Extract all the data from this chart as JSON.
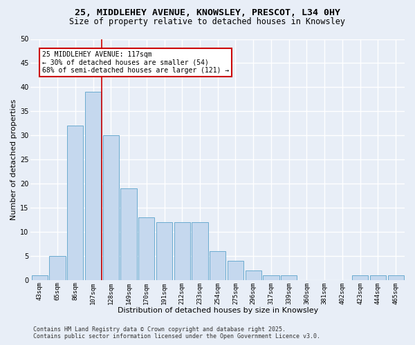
{
  "title": "25, MIDDLEHEY AVENUE, KNOWSLEY, PRESCOT, L34 0HY",
  "subtitle": "Size of property relative to detached houses in Knowsley",
  "xlabel": "Distribution of detached houses by size in Knowsley",
  "ylabel": "Number of detached properties",
  "categories": [
    "43sqm",
    "65sqm",
    "86sqm",
    "107sqm",
    "128sqm",
    "149sqm",
    "170sqm",
    "191sqm",
    "212sqm",
    "233sqm",
    "254sqm",
    "275sqm",
    "296sqm",
    "317sqm",
    "339sqm",
    "360sqm",
    "381sqm",
    "402sqm",
    "423sqm",
    "444sqm",
    "465sqm"
  ],
  "values": [
    1,
    5,
    32,
    39,
    30,
    19,
    13,
    12,
    12,
    12,
    6,
    4,
    2,
    1,
    1,
    0,
    0,
    0,
    1,
    1,
    1
  ],
  "bar_color": "#c5d8ee",
  "bar_edge_color": "#6aabcf",
  "vline_x": 3.5,
  "vline_color": "#cc0000",
  "annotation_text": "25 MIDDLEHEY AVENUE: 117sqm\n← 30% of detached houses are smaller (54)\n68% of semi-detached houses are larger (121) →",
  "annotation_box_color": "#ffffff",
  "annotation_box_edge": "#cc0000",
  "ylim": [
    0,
    50
  ],
  "yticks": [
    0,
    5,
    10,
    15,
    20,
    25,
    30,
    35,
    40,
    45,
    50
  ],
  "footer": "Contains HM Land Registry data © Crown copyright and database right 2025.\nContains public sector information licensed under the Open Government Licence v3.0.",
  "background_color": "#e8eef7",
  "plot_background": "#e8eef7",
  "grid_color": "#ffffff",
  "title_fontsize": 9.5,
  "subtitle_fontsize": 8.5,
  "axis_label_fontsize": 8,
  "tick_fontsize": 6.5,
  "annotation_fontsize": 7,
  "footer_fontsize": 6
}
